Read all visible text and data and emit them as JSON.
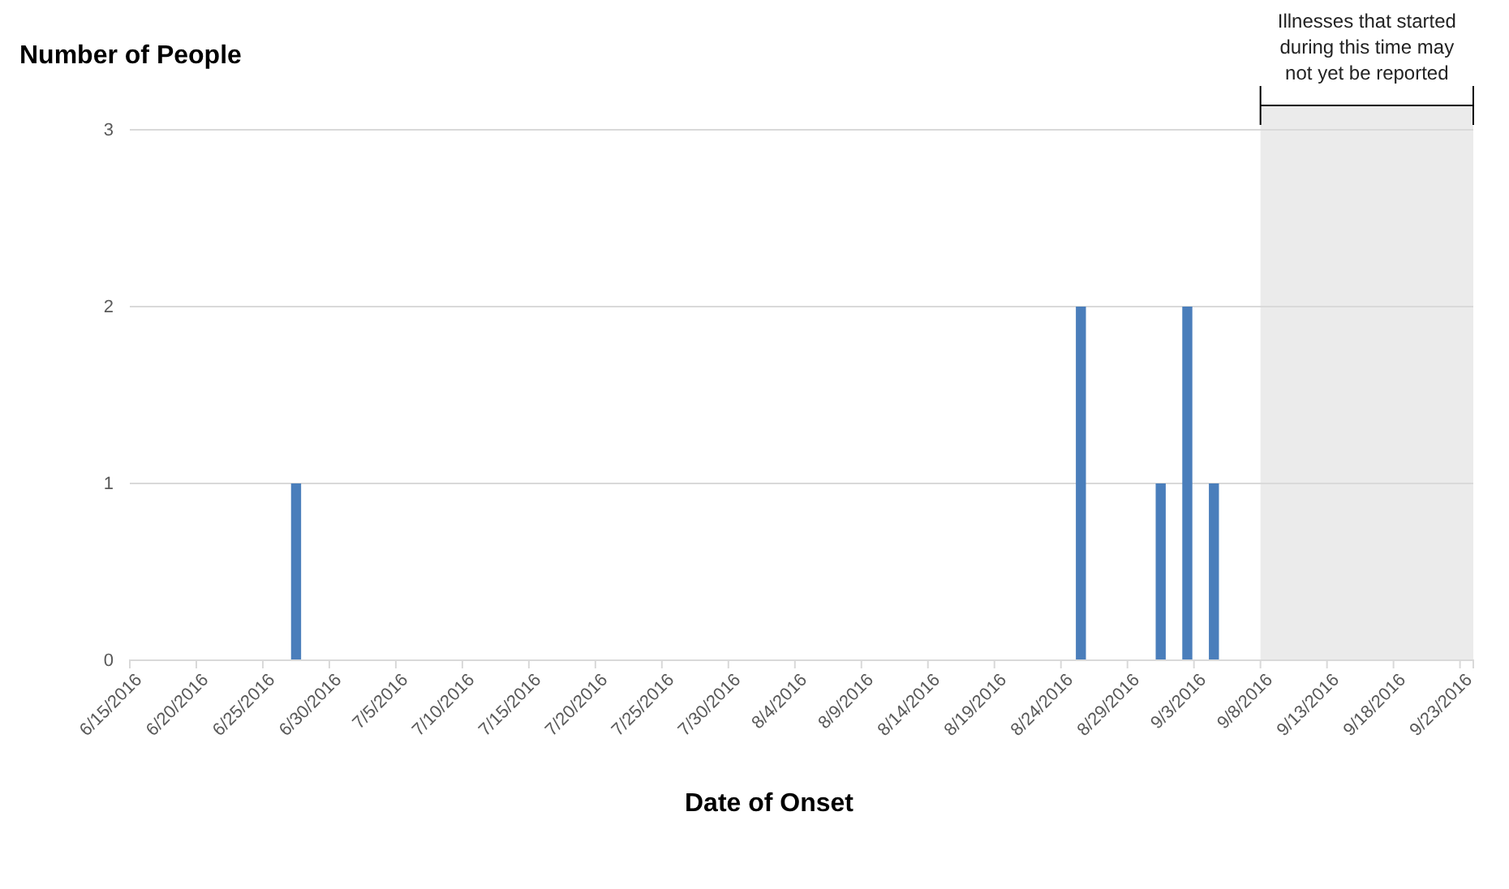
{
  "chart_data": {
    "type": "bar",
    "ylabel": "Number of People",
    "xlabel": "Date of Onset",
    "x": [
      "2016-06-27",
      "2016-08-25",
      "2016-08-31",
      "2016-09-02",
      "2016-09-04"
    ],
    "values": [
      1,
      2,
      1,
      2,
      1
    ],
    "color": "#4a7ebb",
    "xlim": [
      "2016-06-15",
      "2016-09-24"
    ],
    "xticks": [
      {
        "value": "2016-06-15",
        "label": "6/15/2016"
      },
      {
        "value": "2016-06-20",
        "label": "6/20/2016"
      },
      {
        "value": "2016-06-25",
        "label": "6/25/2016"
      },
      {
        "value": "2016-06-30",
        "label": "6/30/2016"
      },
      {
        "value": "2016-07-05",
        "label": "7/5/2016"
      },
      {
        "value": "2016-07-10",
        "label": "7/10/2016"
      },
      {
        "value": "2016-07-15",
        "label": "7/15/2016"
      },
      {
        "value": "2016-07-20",
        "label": "7/20/2016"
      },
      {
        "value": "2016-07-25",
        "label": "7/25/2016"
      },
      {
        "value": "2016-07-30",
        "label": "7/30/2016"
      },
      {
        "value": "2016-08-04",
        "label": "8/4/2016"
      },
      {
        "value": "2016-08-09",
        "label": "8/9/2016"
      },
      {
        "value": "2016-08-14",
        "label": "8/14/2016"
      },
      {
        "value": "2016-08-19",
        "label": "8/19/2016"
      },
      {
        "value": "2016-08-24",
        "label": "8/24/2016"
      },
      {
        "value": "2016-08-29",
        "label": "8/29/2016"
      },
      {
        "value": "2016-09-03",
        "label": "9/3/2016"
      },
      {
        "value": "2016-09-08",
        "label": "9/8/2016"
      },
      {
        "value": "2016-09-13",
        "label": "9/13/2016"
      },
      {
        "value": "2016-09-18",
        "label": "9/18/2016"
      },
      {
        "value": "2016-09-23",
        "label": "9/23/2016"
      }
    ],
    "ylim": [
      0,
      3
    ],
    "yticks": [
      0,
      1,
      2,
      3
    ],
    "grid": "y",
    "bands": [
      {
        "axis": "x",
        "from": "2016-09-08",
        "to": "2016-09-24",
        "label": "Illnesses that started during this time may not yet  be reported",
        "color": "#ebebeb"
      }
    ]
  }
}
